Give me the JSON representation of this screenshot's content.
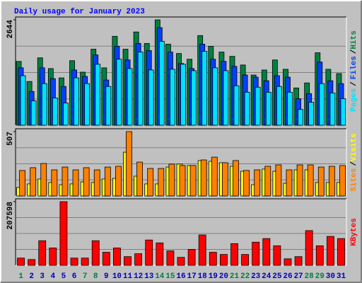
{
  "chart_data": [
    {
      "type": "bar",
      "title": "Daily usage for January 2023",
      "ylim": [
        0,
        2644
      ],
      "yticks": [
        2644
      ],
      "legend_separator": "/",
      "series": [
        {
          "name": "Hits",
          "color": "#008040",
          "values": [
            1600,
            1097,
            1691,
            1421,
            1187,
            1619,
            1331,
            1907,
            1439,
            2230,
            1907,
            2339,
            2051,
            2644,
            2033,
            1799,
            1655,
            2249,
            1979,
            1835,
            1727,
            1511,
            1259,
            1385,
            1637,
            1403,
            935,
            1061,
            1817,
            1403,
            1295
          ]
        },
        {
          "name": "Files",
          "color": "#0040ff",
          "values": [
            1440,
            846,
            1440,
            1170,
            972,
            1386,
            1224,
            1764,
            1134,
            1980,
            1638,
            2052,
            1872,
            2448,
            1836,
            1548,
            1422,
            2034,
            1656,
            1602,
            1476,
            1260,
            1206,
            1116,
            1242,
            1206,
            666,
            792,
            1584,
            1116,
            1044
          ]
        },
        {
          "name": "Pages",
          "color": "#00e0ff",
          "values": [
            1242,
            612,
            1044,
            684,
            558,
            1188,
            1044,
            1530,
            972,
            1656,
            1422,
            1836,
            1386,
            2106,
            1404,
            1530,
            1368,
            1854,
            1440,
            1368,
            990,
            828,
            954,
            828,
            972,
            828,
            396,
            576,
            1044,
            810,
            666
          ]
        }
      ]
    },
    {
      "type": "bar",
      "ylim": [
        0,
        507
      ],
      "yticks": [
        507
      ],
      "legend_separator": "/",
      "series": [
        {
          "name": "Visits",
          "color": "#ffff00",
          "values": [
            67,
            95,
            134,
            106,
            89,
            95,
            111,
            106,
            134,
            139,
            345,
            156,
            95,
            95,
            228,
            251,
            240,
            279,
            273,
            262,
            234,
            195,
            89,
            212,
            195,
            100,
            206,
            206,
            106,
            106,
            106
          ]
        },
        {
          "name": "Sites",
          "color": "#ff8000",
          "values": [
            201,
            223,
            256,
            206,
            228,
            206,
            223,
            206,
            228,
            234,
            507,
            267,
            217,
            217,
            251,
            240,
            240,
            284,
            306,
            262,
            279,
            201,
            206,
            234,
            245,
            206,
            245,
            245,
            228,
            234,
            240
          ]
        }
      ]
    },
    {
      "type": "bar",
      "ylim": [
        0,
        207598
      ],
      "yticks": [
        207598
      ],
      "categories": [
        "1",
        "2",
        "3",
        "4",
        "5",
        "6",
        "7",
        "8",
        "9",
        "10",
        "11",
        "12",
        "13",
        "14",
        "15",
        "16",
        "17",
        "18",
        "19",
        "20",
        "21",
        "22",
        "23",
        "24",
        "25",
        "26",
        "27",
        "28",
        "29",
        "30",
        "31"
      ],
      "category_colors": [
        "#008040",
        "#0000c0",
        "#0000c0",
        "#0000c0",
        "#0000c0",
        "#0000c0",
        "#008040",
        "#008040",
        "#0000c0",
        "#0000c0",
        "#0000c0",
        "#0000c0",
        "#0000c0",
        "#008040",
        "#008040",
        "#0000c0",
        "#0000c0",
        "#0000c0",
        "#0000c0",
        "#0000c0",
        "#008040",
        "#008040",
        "#0000c0",
        "#0000c0",
        "#0000c0",
        "#0000c0",
        "#0000c0",
        "#008040",
        "#008040",
        "#0000c0",
        "#0000c0"
      ],
      "series": [
        {
          "name": "KBytes",
          "color": "#ff0000",
          "values": [
            23590,
            18872,
            80206,
            56616,
            207598,
            23590,
            23590,
            80206,
            42462,
            56616,
            28308,
            37744,
            82565,
            73129,
            47180,
            25949,
            51898,
            99078,
            42462,
            35385,
            70770,
            35385,
            75488,
            87283,
            63693,
            21231,
            28308,
            113232,
            63693,
            94360,
            87283
          ]
        }
      ]
    }
  ]
}
